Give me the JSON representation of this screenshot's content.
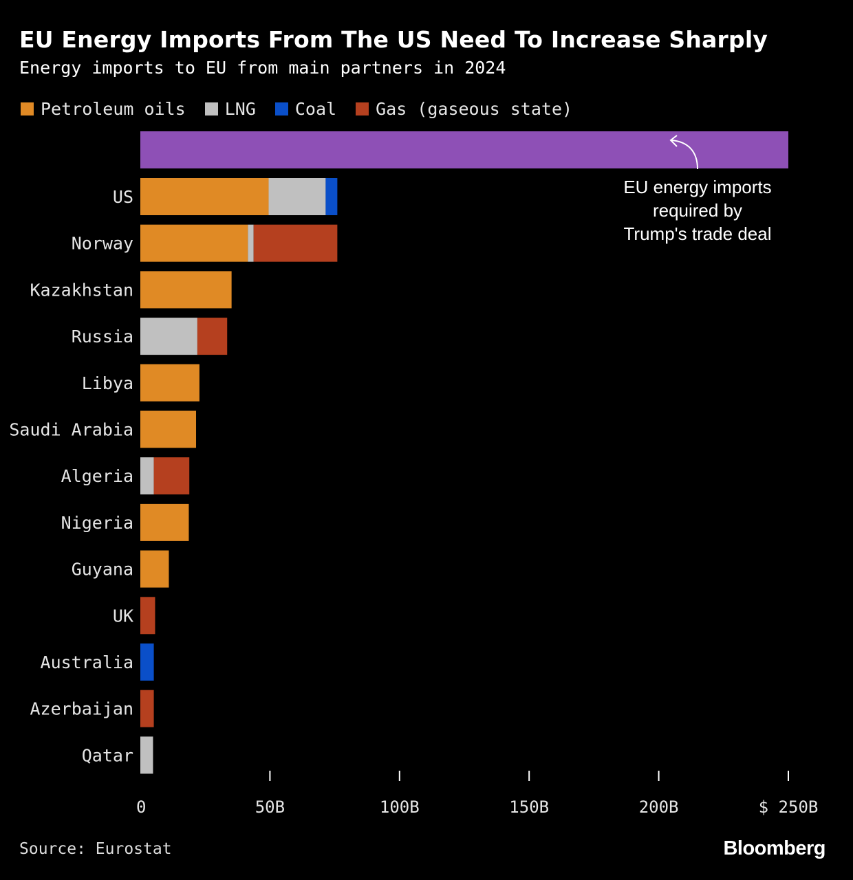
{
  "chart_data": {
    "type": "bar",
    "orientation": "horizontal",
    "stacked": true,
    "title": "EU Energy Imports From The US Need To Increase Sharply",
    "subtitle": "Energy imports to EU from main partners in 2024",
    "categories": [
      "US",
      "Norway",
      "Kazakhstan",
      "Russia",
      "Libya",
      "Saudi Arabia",
      "Algeria",
      "Nigeria",
      "Guyana",
      "UK",
      "Australia",
      "Azerbaijan",
      "Qatar"
    ],
    "series": [
      {
        "name": "Petroleum oils",
        "color": "#e08a25",
        "values": [
          49.5,
          41.5,
          35.2,
          0,
          22.8,
          21.5,
          0,
          18.7,
          11.0,
          0,
          0,
          0,
          0
        ]
      },
      {
        "name": "LNG",
        "color": "#c0c0c0",
        "values": [
          22.0,
          2.2,
          0,
          22.0,
          0,
          0,
          5.2,
          0,
          0,
          0,
          0,
          0,
          4.9
        ]
      },
      {
        "name": "Coal",
        "color": "#0a4fc9",
        "values": [
          4.5,
          0,
          0,
          0,
          0,
          0,
          0,
          0,
          0,
          0,
          5.2,
          0,
          0
        ]
      },
      {
        "name": "Gas (gaseous state)",
        "color": "#b5401f",
        "values": [
          0,
          32.3,
          0,
          11.5,
          0,
          0,
          13.7,
          0,
          0,
          5.7,
          0,
          5.2,
          0
        ]
      }
    ],
    "target": {
      "value": 250,
      "color": "#8e50b6",
      "annotation": [
        "EU energy imports",
        "required by",
        "Trump's trade deal"
      ]
    },
    "xlim": [
      0,
      250
    ],
    "x_ticks": [
      0,
      50,
      100,
      150,
      200,
      250
    ],
    "x_tick_labels": [
      "0",
      "50B",
      "100B",
      "150B",
      "200B",
      "$ 250B"
    ],
    "grid": false,
    "legend_position": "top-left"
  },
  "footer": {
    "source": "Source: Eurostat",
    "brand": "Bloomberg"
  }
}
